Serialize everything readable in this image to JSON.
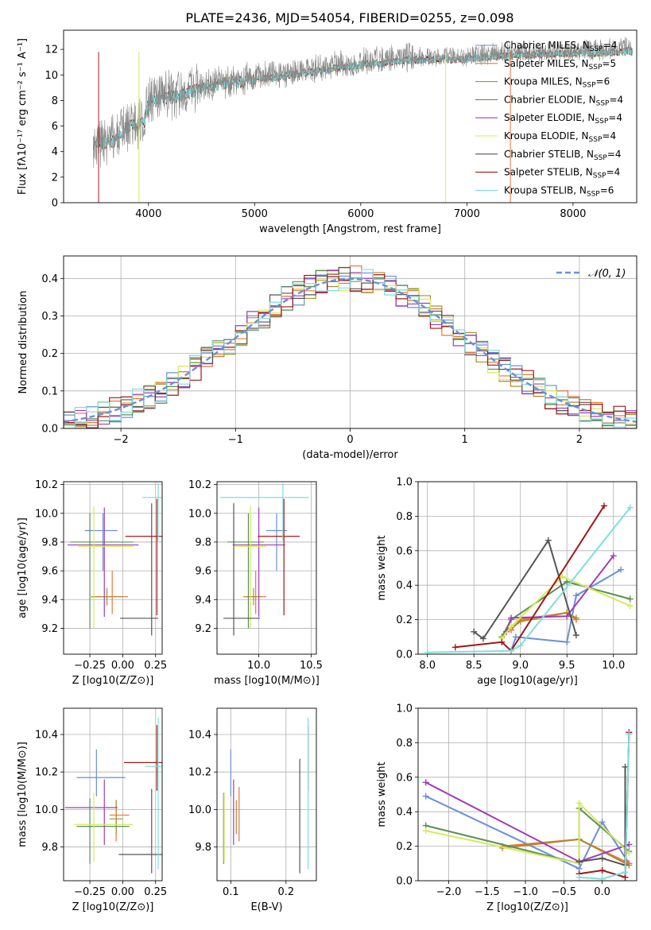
{
  "figure_title": "PLATE=2436, MJD=54054, FIBERID=0255, z=0.098",
  "colors": {
    "Chabrier MILES": "#6a8fd9",
    "Salpeter MILES": "#e8743b",
    "Kroupa MILES": "#b08a30",
    "Chabrier ELODIE": "#5a8f5a",
    "Salpeter ELODIE": "#a03cb8",
    "Kroupa ELODIE": "#d6ea5a",
    "Chabrier STELIB": "#555555",
    "Salpeter STELIB": "#a01818",
    "Kroupa STELIB": "#7fdede",
    "data": "#888888",
    "normal": "#6a8fd9"
  },
  "chart_data": [
    {
      "id": "spectrum",
      "type": "line",
      "xlabel": "wavelength [Angstrom, rest frame]",
      "ylabel": "Flux [fλ10⁻¹⁷ erg cm⁻² s⁻¹ A⁻¹]",
      "xlim": [
        3200,
        8600
      ],
      "ylim": [
        0,
        13.5
      ],
      "x_ticks": [
        4000,
        5000,
        6000,
        7000,
        8000
      ],
      "y_ticks": [
        0,
        2,
        4,
        6,
        8,
        10,
        12
      ],
      "x_range_data": [
        3480,
        8560
      ],
      "continuum_anchors": [
        [
          3480,
          4.8
        ],
        [
          3700,
          4.9
        ],
        [
          3800,
          6.0
        ],
        [
          3960,
          6.5
        ],
        [
          4000,
          8.0
        ],
        [
          4300,
          8.6
        ],
        [
          4600,
          9.4
        ],
        [
          5000,
          9.8
        ],
        [
          5500,
          10.4
        ],
        [
          6000,
          11.0
        ],
        [
          6500,
          11.4
        ],
        [
          7000,
          11.5
        ],
        [
          7500,
          11.8
        ],
        [
          8000,
          11.9
        ],
        [
          8560,
          12.1
        ]
      ],
      "legend": [
        "Chabrier MILES, N_SSP=4",
        "Salpeter MILES, N_SSP=5",
        "Kroupa MILES, N_SSP=6",
        "Chabrier ELODIE, N_SSP=4",
        "Salpeter ELODIE, N_SSP=4",
        "Kroupa ELODIE, N_SSP=4",
        "Chabrier STELIB, N_SSP=4",
        "Salpeter STELIB, N_SSP=4",
        "Kroupa STELIB, N_SSP=6"
      ],
      "legend_position": "right",
      "grid": false
    },
    {
      "id": "residuals",
      "type": "histogram",
      "xlabel": "(data-model)/error",
      "ylabel": "Normed distribution",
      "xlim": [
        -2.5,
        2.5
      ],
      "ylim": [
        0,
        0.46
      ],
      "x_ticks": [
        -2,
        -1,
        0,
        1,
        2
      ],
      "y_ticks": [
        0.0,
        0.1,
        0.2,
        0.3,
        0.4
      ],
      "bin_width": 0.1,
      "legend": [
        "𝒩(0, 1)"
      ],
      "legend_position": "upper right",
      "grid": true
    },
    {
      "id": "age_vs_Z",
      "type": "errorbar",
      "xlabel": "Z [log10(Z/Z⊙)]",
      "ylabel": "age  [log10(age/yr)]",
      "xlim": [
        -0.45,
        0.3
      ],
      "ylim": [
        9.02,
        10.22
      ],
      "x_ticks": [
        -0.25,
        0.0,
        0.25
      ],
      "y_ticks": [
        9.2,
        9.4,
        9.6,
        9.8,
        10.0,
        10.2
      ],
      "points": [
        {
          "model": "Chabrier MILES",
          "x": -0.15,
          "y": 9.88,
          "xerr": [
            0.14,
            0.11
          ],
          "yerr": [
            0.28,
            0.12
          ]
        },
        {
          "model": "Salpeter MILES",
          "x": -0.08,
          "y": 9.42,
          "xerr": [
            0.16,
            0.12
          ],
          "yerr": [
            0.12,
            0.18
          ]
        },
        {
          "model": "Kroupa MILES",
          "x": -0.12,
          "y": 9.42,
          "xerr": [
            0.12,
            0.12
          ],
          "yerr": [
            0.06,
            0.06
          ]
        },
        {
          "model": "Chabrier ELODIE",
          "x": -0.25,
          "y": 9.8,
          "xerr": [
            0.15,
            0.33
          ],
          "yerr": [
            0.6,
            0.2
          ]
        },
        {
          "model": "Salpeter ELODIE",
          "x": -0.14,
          "y": 9.78,
          "xerr": [
            0.28,
            0.26
          ],
          "yerr": [
            0.5,
            0.26
          ]
        },
        {
          "model": "Kroupa ELODIE",
          "x": -0.22,
          "y": 9.77,
          "xerr": [
            0.12,
            0.3
          ],
          "yerr": [
            0.57,
            0.28
          ]
        },
        {
          "model": "Chabrier STELIB",
          "x": 0.22,
          "y": 9.27,
          "xerr": [
            0.24,
            0.05
          ],
          "yerr": [
            0.12,
            0.8
          ]
        },
        {
          "model": "Salpeter STELIB",
          "x": 0.26,
          "y": 9.84,
          "xerr": [
            0.24,
            0.04
          ],
          "yerr": [
            0.55,
            0.26
          ]
        },
        {
          "model": "Kroupa STELIB",
          "x": 0.27,
          "y": 10.11,
          "xerr": [
            0.12,
            0.03
          ],
          "yerr": [
            0.3,
            0.1
          ]
        }
      ],
      "grid": true
    },
    {
      "id": "age_vs_mass",
      "type": "errorbar",
      "xlabel": "mass [log10(M/M⊙)]",
      "ylabel": "",
      "xlim": [
        9.6,
        10.55
      ],
      "ylim": [
        9.02,
        10.22
      ],
      "x_ticks": [
        10.0,
        10.5
      ],
      "y_ticks": [
        9.2,
        9.4,
        9.6,
        9.8,
        10.0,
        10.2
      ],
      "points": [
        {
          "model": "Chabrier MILES",
          "x": 10.17,
          "y": 9.88,
          "xerr": [
            0.1,
            0.1
          ],
          "yerr": [
            0.28,
            0.12
          ]
        },
        {
          "model": "Salpeter MILES",
          "x": 9.97,
          "y": 9.42,
          "xerr": [
            0.12,
            0.1
          ],
          "yerr": [
            0.12,
            0.18
          ]
        },
        {
          "model": "Kroupa MILES",
          "x": 9.95,
          "y": 9.42,
          "xerr": [
            0.08,
            0.08
          ],
          "yerr": [
            0.06,
            0.06
          ]
        },
        {
          "model": "Chabrier ELODIE",
          "x": 9.9,
          "y": 9.8,
          "xerr": [
            0.2,
            0.15
          ],
          "yerr": [
            0.6,
            0.2
          ]
        },
        {
          "model": "Salpeter ELODIE",
          "x": 10.0,
          "y": 9.78,
          "xerr": [
            0.25,
            0.25
          ],
          "yerr": [
            0.5,
            0.26
          ]
        },
        {
          "model": "Kroupa ELODIE",
          "x": 9.92,
          "y": 9.77,
          "xerr": [
            0.15,
            0.15
          ],
          "yerr": [
            0.57,
            0.28
          ]
        },
        {
          "model": "Chabrier STELIB",
          "x": 9.76,
          "y": 9.27,
          "xerr": [
            0.1,
            0.25
          ],
          "yerr": [
            0.12,
            0.8
          ]
        },
        {
          "model": "Salpeter STELIB",
          "x": 10.24,
          "y": 9.84,
          "xerr": [
            0.25,
            0.15
          ],
          "yerr": [
            0.55,
            0.26
          ]
        },
        {
          "model": "Kroupa STELIB",
          "x": 10.23,
          "y": 10.11,
          "xerr": [
            0.6,
            0.25
          ],
          "yerr": [
            0.3,
            0.1
          ]
        }
      ],
      "grid": true
    },
    {
      "id": "weight_vs_age",
      "type": "line",
      "xlabel": "age  [log10(age/yr)]",
      "ylabel": "mass weight",
      "xlim": [
        7.9,
        10.25
      ],
      "ylim": [
        0,
        1
      ],
      "x_ticks": [
        8.0,
        8.5,
        9.0,
        9.5,
        10.0
      ],
      "y_ticks": [
        0.0,
        0.2,
        0.4,
        0.6,
        0.8,
        1.0
      ],
      "series": [
        {
          "model": "Chabrier MILES",
          "x": [
            8.9,
            8.95,
            9.5,
            9.6,
            10.08
          ],
          "y": [
            0.02,
            0.1,
            0.07,
            0.34,
            0.49
          ]
        },
        {
          "model": "Salpeter MILES",
          "x": [
            8.9,
            9.0,
            9.5,
            9.6
          ],
          "y": [
            0.14,
            0.2,
            0.24,
            0.2
          ]
        },
        {
          "model": "Kroupa MILES",
          "x": [
            8.85,
            9.0,
            9.5,
            9.6
          ],
          "y": [
            0.13,
            0.19,
            0.24,
            0.21
          ]
        },
        {
          "model": "Chabrier ELODIE",
          "x": [
            8.8,
            8.9,
            9.5,
            10.18
          ],
          "y": [
            0.1,
            0.2,
            0.42,
            0.32
          ]
        },
        {
          "model": "Salpeter ELODIE",
          "x": [
            8.85,
            8.9,
            9.5,
            10.0
          ],
          "y": [
            0.13,
            0.21,
            0.22,
            0.57
          ]
        },
        {
          "model": "Kroupa ELODIE",
          "x": [
            8.8,
            8.9,
            9.45,
            10.18
          ],
          "y": [
            0.09,
            0.16,
            0.45,
            0.28
          ]
        },
        {
          "model": "Chabrier STELIB",
          "x": [
            8.5,
            8.6,
            9.3,
            9.6
          ],
          "y": [
            0.13,
            0.09,
            0.66,
            0.11
          ]
        },
        {
          "model": "Salpeter STELIB",
          "x": [
            8.3,
            8.8,
            8.9,
            9.9
          ],
          "y": [
            0.04,
            0.07,
            0.02,
            0.86
          ]
        },
        {
          "model": "Kroupa STELIB",
          "x": [
            8.0,
            8.9,
            9.0,
            10.18
          ],
          "y": [
            0.01,
            0.02,
            0.05,
            0.85
          ]
        }
      ],
      "grid": true
    },
    {
      "id": "mass_vs_Z",
      "type": "errorbar",
      "xlabel": "Z [log10(Z/Z⊙)]",
      "ylabel": "mass [log10(M/M⊙)]",
      "xlim": [
        -0.45,
        0.3
      ],
      "ylim": [
        9.62,
        10.54
      ],
      "x_ticks": [
        -0.25,
        0.0,
        0.25
      ],
      "y_ticks": [
        9.8,
        10.0,
        10.2,
        10.4
      ],
      "points": [
        {
          "model": "Chabrier MILES",
          "x": -0.2,
          "y": 10.17,
          "xerr": [
            0.15,
            0.22
          ],
          "yerr": [
            0.1,
            0.15
          ]
        },
        {
          "model": "Salpeter MILES",
          "x": -0.05,
          "y": 9.97,
          "xerr": [
            0.05,
            0.1
          ],
          "yerr": [
            0.14,
            0.08
          ]
        },
        {
          "model": "Kroupa MILES",
          "x": -0.05,
          "y": 9.95,
          "xerr": [
            0.05,
            0.05
          ],
          "yerr": [
            0.08,
            0.1
          ]
        },
        {
          "model": "Chabrier ELODIE",
          "x": -0.25,
          "y": 9.91,
          "xerr": [
            0.1,
            0.3
          ],
          "yerr": [
            0.2,
            0.15
          ]
        },
        {
          "model": "Salpeter ELODIE",
          "x": -0.14,
          "y": 10.01,
          "xerr": [
            0.3,
            0.1
          ],
          "yerr": [
            0.2,
            0.15
          ]
        },
        {
          "model": "Kroupa ELODIE",
          "x": -0.22,
          "y": 9.92,
          "xerr": [
            0.15,
            0.3
          ],
          "yerr": [
            0.2,
            0.17
          ]
        },
        {
          "model": "Chabrier STELIB",
          "x": 0.22,
          "y": 9.76,
          "xerr": [
            0.25,
            0.08
          ],
          "yerr": [
            0.1,
            0.35
          ]
        },
        {
          "model": "Salpeter STELIB",
          "x": 0.26,
          "y": 10.25,
          "xerr": [
            0.25,
            0.05
          ],
          "yerr": [
            0.15,
            0.2
          ]
        },
        {
          "model": "Kroupa STELIB",
          "x": 0.27,
          "y": 10.23,
          "xerr": [
            0.1,
            0.03
          ],
          "yerr": [
            0.55,
            0.26
          ]
        }
      ],
      "grid": true
    },
    {
      "id": "mass_vs_ebv",
      "type": "errorbar",
      "xlabel": "E(B-V)",
      "ylabel": "",
      "xlim": [
        0.075,
        0.255
      ],
      "ylim": [
        9.62,
        10.54
      ],
      "x_ticks": [
        0.1,
        0.2
      ],
      "y_ticks": [
        9.8,
        10.0,
        10.2,
        10.4
      ],
      "points": [
        {
          "model": "Chabrier MILES",
          "x": 0.1,
          "y": 10.17,
          "yerr": [
            0.1,
            0.15
          ]
        },
        {
          "model": "Salpeter MILES",
          "x": 0.115,
          "y": 9.97,
          "yerr": [
            0.14,
            0.15
          ]
        },
        {
          "model": "Kroupa MILES",
          "x": 0.11,
          "y": 9.95,
          "yerr": [
            0.08,
            0.1
          ]
        },
        {
          "model": "Chabrier ELODIE",
          "x": 0.087,
          "y": 9.91,
          "yerr": [
            0.2,
            0.18
          ]
        },
        {
          "model": "Salpeter ELODIE",
          "x": 0.105,
          "y": 10.01,
          "yerr": [
            0.2,
            0.15
          ]
        },
        {
          "model": "Kroupa ELODIE",
          "x": 0.088,
          "y": 9.92,
          "yerr": [
            0.2,
            0.17
          ]
        },
        {
          "model": "Chabrier STELIB",
          "x": 0.225,
          "y": 9.76,
          "yerr": [
            0.1,
            0.51
          ]
        },
        {
          "model": "Salpeter STELIB",
          "x": 0.24,
          "y": 10.25,
          "yerr": [
            0.15,
            0.2
          ]
        },
        {
          "model": "Kroupa STELIB",
          "x": 0.24,
          "y": 10.23,
          "yerr": [
            0.55,
            0.26
          ]
        }
      ],
      "grid": true
    },
    {
      "id": "weight_vs_Z",
      "type": "line",
      "xlabel": "Z [log10(Z/Z⊙)]",
      "ylabel": "mass weight",
      "xlim": [
        -2.4,
        0.45
      ],
      "ylim": [
        0,
        1
      ],
      "x_ticks": [
        -2.0,
        -1.5,
        -1.0,
        -0.5,
        0.0
      ],
      "y_ticks": [
        0.0,
        0.2,
        0.4,
        0.6,
        0.8,
        1.0
      ],
      "series": [
        {
          "model": "Chabrier MILES",
          "x": [
            -2.3,
            -0.3,
            0.0,
            0.35
          ],
          "y": [
            0.49,
            0.07,
            0.34,
            0.1
          ]
        },
        {
          "model": "Salpeter MILES",
          "x": [
            -1.3,
            -0.3,
            0.35
          ],
          "y": [
            0.2,
            0.24,
            0.1
          ]
        },
        {
          "model": "Kroupa MILES",
          "x": [
            -1.3,
            -0.3,
            0.35
          ],
          "y": [
            0.19,
            0.24,
            0.09
          ]
        },
        {
          "model": "Chabrier ELODIE",
          "x": [
            -2.3,
            -0.3,
            -0.3,
            0.35
          ],
          "y": [
            0.32,
            0.1,
            0.42,
            0.17
          ]
        },
        {
          "model": "Salpeter ELODIE",
          "x": [
            -2.3,
            -0.3,
            0.35
          ],
          "y": [
            0.57,
            0.11,
            0.21
          ]
        },
        {
          "model": "Kroupa ELODIE",
          "x": [
            -2.3,
            -0.3,
            -0.3,
            0.35
          ],
          "y": [
            0.29,
            0.1,
            0.45,
            0.16
          ]
        },
        {
          "model": "Chabrier STELIB",
          "x": [
            -0.3,
            0.0,
            0.3,
            0.3
          ],
          "y": [
            0.11,
            0.13,
            0.09,
            0.66
          ]
        },
        {
          "model": "Salpeter STELIB",
          "x": [
            -0.3,
            0.0,
            0.3,
            0.35
          ],
          "y": [
            0.04,
            0.06,
            0.02,
            0.86
          ]
        },
        {
          "model": "Kroupa STELIB",
          "x": [
            -0.3,
            0.0,
            0.3,
            0.35
          ],
          "y": [
            0.02,
            0.01,
            0.05,
            0.85
          ]
        }
      ],
      "grid": true
    }
  ]
}
